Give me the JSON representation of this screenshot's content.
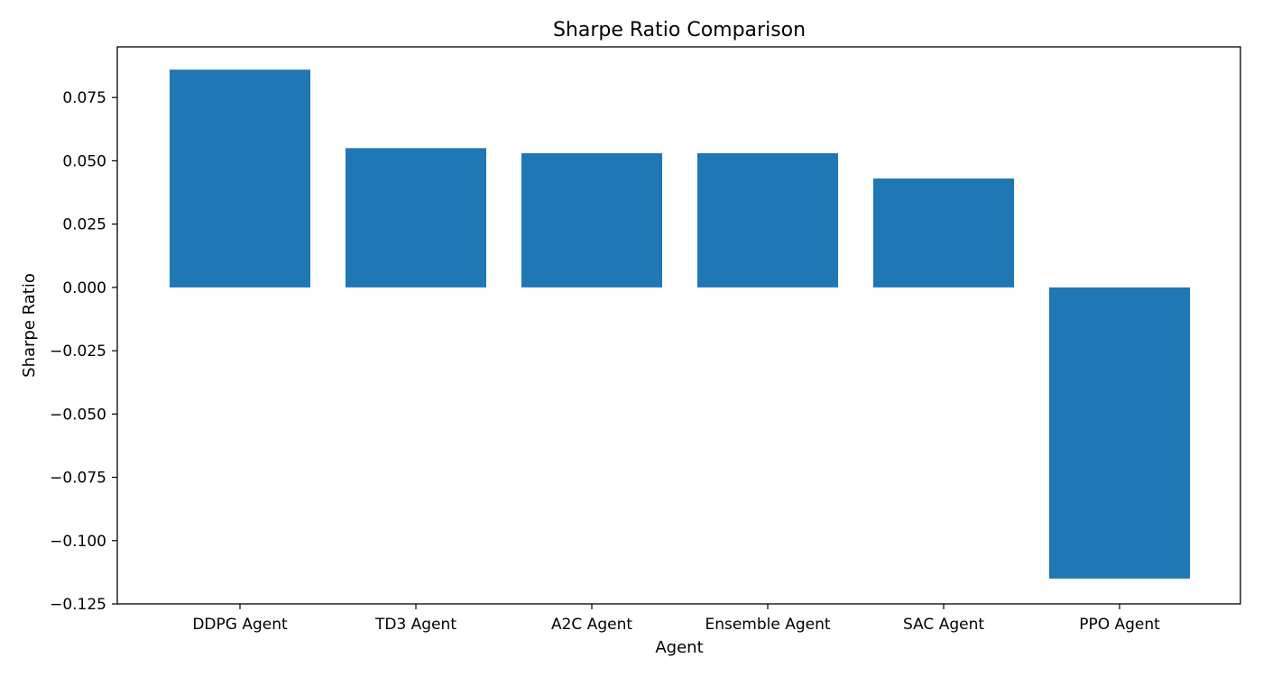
{
  "chart_data": {
    "type": "bar",
    "title": "Sharpe Ratio Comparison",
    "xlabel": "Agent",
    "ylabel": "Sharpe Ratio",
    "categories": [
      "DDPG Agent",
      "TD3 Agent",
      "A2C Agent",
      "Ensemble Agent",
      "SAC Agent",
      "PPO Agent"
    ],
    "values": [
      0.086,
      0.055,
      0.053,
      0.053,
      0.043,
      -0.115
    ],
    "ylim": [
      -0.125,
      0.095
    ],
    "yticks": [
      0.075,
      0.05,
      0.025,
      0.0,
      -0.025,
      -0.05,
      -0.075,
      -0.1,
      -0.125
    ],
    "ytick_labels": [
      "0.075",
      "0.050",
      "0.025",
      "0.000",
      "−0.025",
      "−0.050",
      "−0.075",
      "−0.100",
      "−0.125"
    ],
    "bar_color": "#1f77b4",
    "grid": false,
    "legend": "none"
  }
}
